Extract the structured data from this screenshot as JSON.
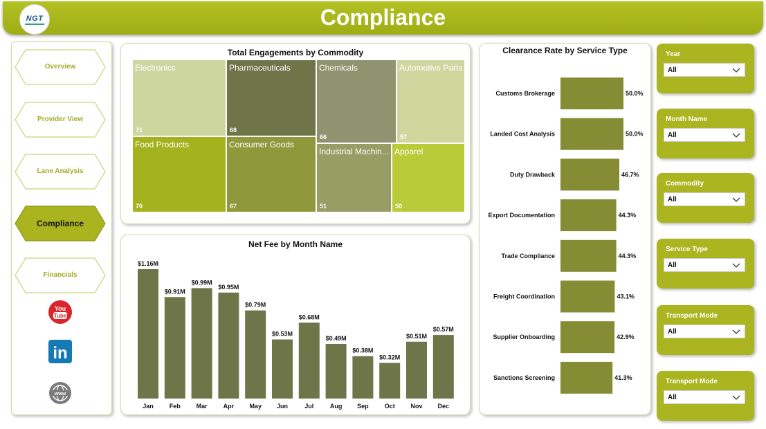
{
  "header": {
    "title": "Compliance",
    "logo_text": "NGT"
  },
  "nav": {
    "items": [
      {
        "label": "Overview",
        "active": false
      },
      {
        "label": "Provider View",
        "active": false
      },
      {
        "label": "Lane Analysis",
        "active": false
      },
      {
        "label": "Compliance",
        "active": true
      },
      {
        "label": "Financials",
        "active": false
      }
    ],
    "social": [
      {
        "icon": "youtube-icon",
        "text": "You Tube"
      },
      {
        "icon": "linkedin-icon",
        "text": "in"
      },
      {
        "icon": "web-icon",
        "text": "www"
      }
    ]
  },
  "colors": {
    "brand": "#a9b41f",
    "bar_fill": "#6e7549",
    "hbar_fill": "#858c34"
  },
  "treemap": {
    "title": "Total Engagements by Commodity",
    "items": [
      {
        "label": "Electronics",
        "value": 71,
        "color": "#ced6a0"
      },
      {
        "label": "Pharmaceuticals",
        "value": 68,
        "color": "#6f7549"
      },
      {
        "label": "Chemicals",
        "value": 66,
        "color": "#8f9370"
      },
      {
        "label": "Automotive Parts",
        "value": 57,
        "color": "#cfd79f"
      },
      {
        "label": "Food Products",
        "value": 70,
        "color": "#a4b21d"
      },
      {
        "label": "Consumer Goods",
        "value": 67,
        "color": "#8f993b"
      },
      {
        "label": "Industrial Machin...",
        "value": 51,
        "color": "#989d66"
      },
      {
        "label": "Apparel",
        "value": 50,
        "color": "#bbca39"
      }
    ]
  },
  "chart_data": [
    {
      "type": "bar",
      "title": "Net Fee by Month Name",
      "categories": [
        "Jan",
        "Feb",
        "Mar",
        "Apr",
        "May",
        "Jun",
        "Jul",
        "Aug",
        "Sep",
        "Oct",
        "Nov",
        "Dec"
      ],
      "values": [
        1.16,
        0.91,
        0.99,
        0.95,
        0.79,
        0.53,
        0.68,
        0.49,
        0.38,
        0.32,
        0.51,
        0.57
      ],
      "data_labels": [
        "$1.16M",
        "$0.91M",
        "$0.99M",
        "$0.95M",
        "$0.79M",
        "$0.53M",
        "$0.68M",
        "$0.49M",
        "$0.38M",
        "$0.32M",
        "$0.51M",
        "$0.57M"
      ],
      "ylim": [
        0,
        1.16
      ]
    },
    {
      "type": "bar",
      "orientation": "horizontal",
      "title": "Clearance Rate by Service Type",
      "categories": [
        "Customs Brokerage",
        "Landed Cost Analysis",
        "Duty Drawback",
        "Export Documentation",
        "Trade Compliance",
        "Freight Coordination",
        "Supplier Onboarding",
        "Sanctions Screening"
      ],
      "values": [
        50.0,
        50.0,
        46.7,
        44.3,
        44.3,
        43.1,
        42.9,
        41.3
      ],
      "data_labels": [
        "50.0%",
        "50.0%",
        "46.7%",
        "44.3%",
        "44.3%",
        "43.1%",
        "42.9%",
        "41.3%"
      ],
      "xlim": [
        0,
        50
      ]
    }
  ],
  "filters": [
    {
      "label": "Year",
      "value": "All"
    },
    {
      "label": "Month Name",
      "value": "All"
    },
    {
      "label": "Commodity",
      "value": "All"
    },
    {
      "label": "Service Type",
      "value": "All"
    },
    {
      "label": "Transport Mode",
      "value": "All"
    },
    {
      "label": "Transport Mode",
      "value": "All"
    }
  ]
}
